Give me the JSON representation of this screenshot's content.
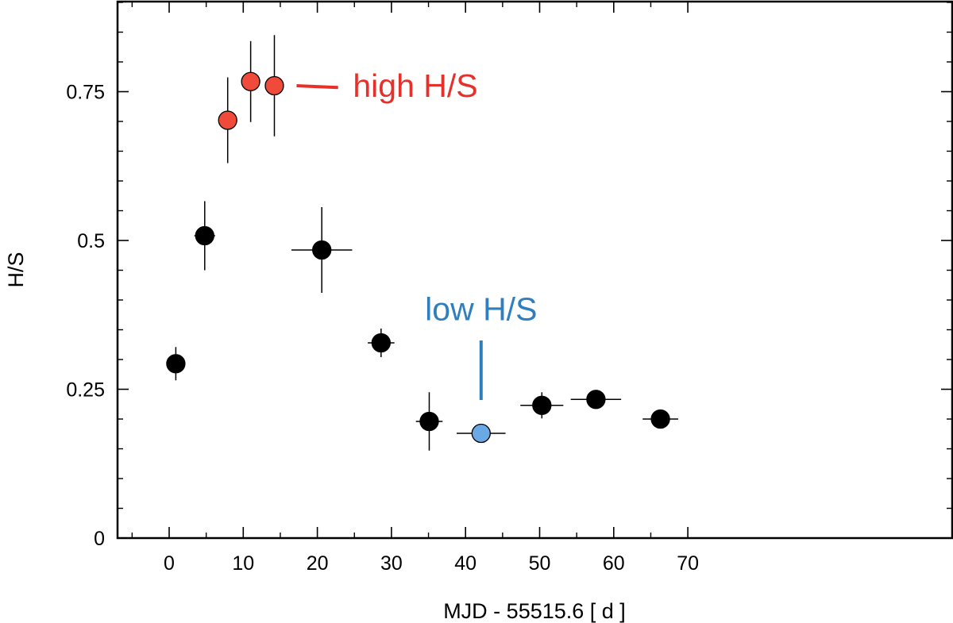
{
  "chart_data": {
    "type": "scatter",
    "xlabel": "MJD - 55515.6 [ d ]",
    "ylabel": "H/S",
    "xlim": [
      -5,
      74
    ],
    "ylim": [
      0,
      0.9
    ],
    "x_ticks": [
      0,
      10,
      20,
      30,
      40,
      50,
      60,
      70
    ],
    "x_tick_labels": [
      "0",
      "10",
      "20",
      "30",
      "40",
      "50",
      "60",
      "70"
    ],
    "y_ticks": [
      0,
      0.25,
      0.5,
      0.75
    ],
    "y_tick_labels": [
      "0",
      "0.25",
      "0.5",
      "0.75"
    ],
    "grid": false,
    "points": [
      {
        "x": 0.9,
        "y": 0.293,
        "xerr": 0.0,
        "yerr": 0.028,
        "group": "normal"
      },
      {
        "x": 4.8,
        "y": 0.508,
        "xerr": 1.4,
        "yerr": 0.058,
        "group": "normal"
      },
      {
        "x": 7.9,
        "y": 0.702,
        "xerr": 0.0,
        "yerr": 0.072,
        "group": "high"
      },
      {
        "x": 11.0,
        "y": 0.767,
        "xerr": 1.0,
        "yerr": 0.068,
        "group": "high"
      },
      {
        "x": 14.2,
        "y": 0.76,
        "xerr": 1.2,
        "yerr": 0.085,
        "group": "high"
      },
      {
        "x": 20.6,
        "y": 0.484,
        "xerr": 4.1,
        "yerr": 0.072,
        "group": "normal"
      },
      {
        "x": 28.6,
        "y": 0.328,
        "xerr": 1.8,
        "yerr": 0.024,
        "group": "normal"
      },
      {
        "x": 35.1,
        "y": 0.196,
        "xerr": 1.8,
        "yerr": 0.049,
        "group": "normal"
      },
      {
        "x": 42.1,
        "y": 0.176,
        "xerr": 3.3,
        "yerr": 0.0,
        "group": "low"
      },
      {
        "x": 50.3,
        "y": 0.223,
        "xerr": 2.9,
        "yerr": 0.022,
        "group": "normal"
      },
      {
        "x": 57.6,
        "y": 0.233,
        "xerr": 3.4,
        "yerr": 0.0,
        "group": "normal"
      },
      {
        "x": 66.3,
        "y": 0.2,
        "xerr": 2.4,
        "yerr": 0.0,
        "group": "normal"
      }
    ],
    "colors": {
      "normal": "#000000",
      "high": "#f04b3a",
      "low": "#6aa8e6",
      "high_text": "#e8302a",
      "low_text": "#2f7fbf"
    },
    "annotations": [
      {
        "text": "high H/S",
        "group": "high",
        "x": 24.8,
        "y": 0.76,
        "line_x": [
          17.2,
          22.8
        ],
        "line_y": [
          0.76,
          0.757
        ]
      },
      {
        "text": "low H/S",
        "group": "low",
        "x": 42.1,
        "y": 0.385,
        "line_x": [
          42.1,
          42.1
        ],
        "line_y": [
          0.332,
          0.232
        ]
      }
    ]
  }
}
